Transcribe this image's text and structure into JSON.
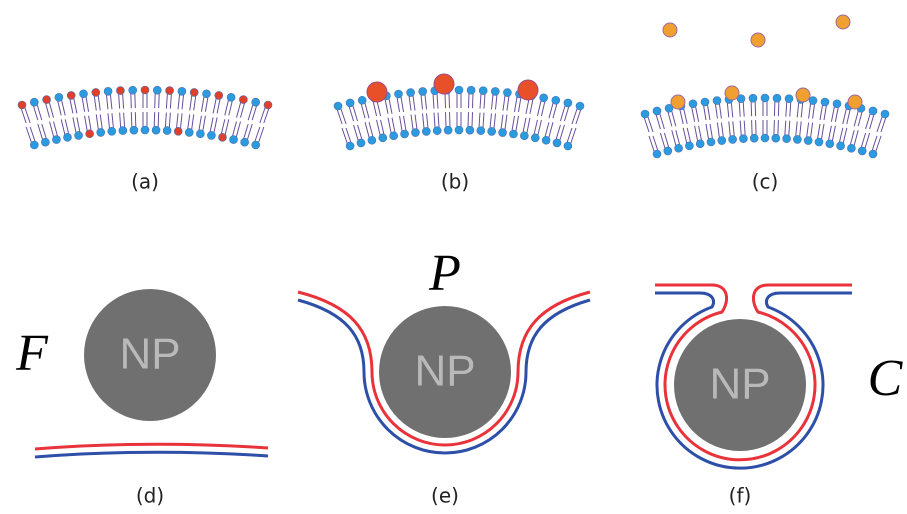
{
  "panels": [
    {
      "label": "(a)"
    },
    {
      "label": "(b)"
    },
    {
      "label": "(c)"
    },
    {
      "label": "(d)",
      "particle": "NP",
      "state": "F"
    },
    {
      "label": "(e)",
      "particle": "NP",
      "state": "P"
    },
    {
      "label": "(f)",
      "particle": "NP",
      "state": "C"
    }
  ]
}
